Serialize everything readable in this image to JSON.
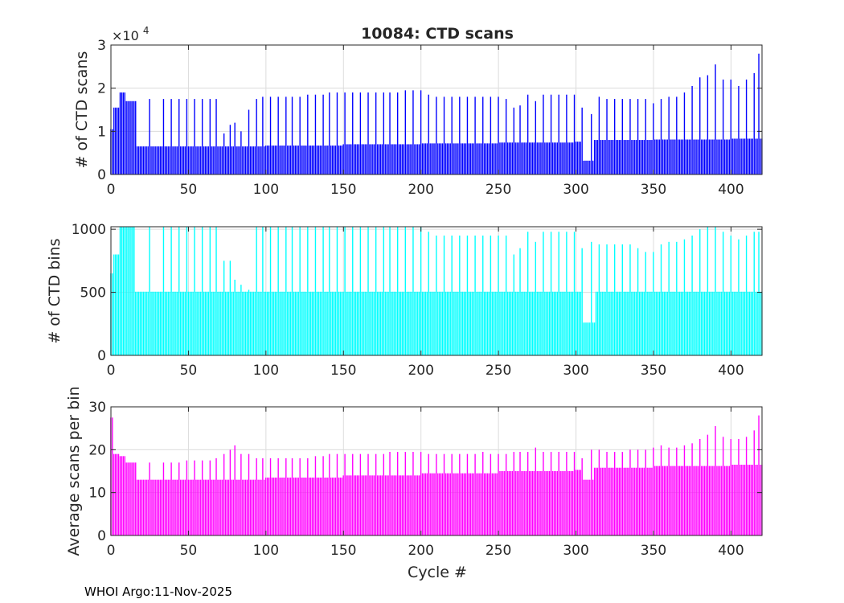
{
  "figure": {
    "title": "10084: CTD scans",
    "xlabel": "Cycle #",
    "footer": "WHOI Argo:11-Nov-2025",
    "top_exponent_base": "×10",
    "top_exponent_power": "4"
  },
  "chart_data": [
    {
      "type": "bar",
      "color": "#0000ff",
      "ylabel": "# of CTD scans",
      "xlim": [
        0,
        420
      ],
      "ylim": [
        0,
        30000
      ],
      "xticks": [
        0,
        50,
        100,
        150,
        200,
        250,
        300,
        350,
        400
      ],
      "yticks": [
        0,
        10000,
        20000,
        30000
      ],
      "ytick_labels": [
        "0",
        "1",
        "2",
        "3"
      ],
      "grid": true,
      "baseline_segments": [
        [
          0,
          2,
          10500
        ],
        [
          2,
          6,
          15500
        ],
        [
          6,
          10,
          19000
        ],
        [
          10,
          14,
          17000
        ],
        [
          14,
          17,
          17000
        ],
        [
          17,
          100,
          6500
        ],
        [
          100,
          150,
          6700
        ],
        [
          150,
          200,
          7000
        ],
        [
          200,
          250,
          7200
        ],
        [
          250,
          300,
          7400
        ],
        [
          300,
          305,
          7600
        ],
        [
          305,
          312,
          3200
        ],
        [
          312,
          350,
          8000
        ],
        [
          350,
          400,
          8100
        ],
        [
          400,
          420,
          8300
        ]
      ],
      "spikes": [
        [
          25,
          17500
        ],
        [
          34,
          17500
        ],
        [
          39,
          17500
        ],
        [
          44,
          17500
        ],
        [
          49,
          17500
        ],
        [
          54,
          17500
        ],
        [
          59,
          17500
        ],
        [
          64,
          17500
        ],
        [
          68,
          17500
        ],
        [
          73,
          9500
        ],
        [
          77,
          11500
        ],
        [
          80,
          12000
        ],
        [
          84,
          10000
        ],
        [
          89,
          15000
        ],
        [
          94,
          17500
        ],
        [
          98,
          18000
        ],
        [
          103,
          18000
        ],
        [
          108,
          18000
        ],
        [
          113,
          18000
        ],
        [
          117,
          18000
        ],
        [
          122,
          18000
        ],
        [
          127,
          18500
        ],
        [
          132,
          18500
        ],
        [
          137,
          18500
        ],
        [
          141,
          19000
        ],
        [
          146,
          19000
        ],
        [
          151,
          19000
        ],
        [
          156,
          19000
        ],
        [
          161,
          19000
        ],
        [
          166,
          19000
        ],
        [
          171,
          19000
        ],
        [
          176,
          19000
        ],
        [
          180,
          19000
        ],
        [
          185,
          19000
        ],
        [
          190,
          19500
        ],
        [
          195,
          19500
        ],
        [
          200,
          19500
        ],
        [
          205,
          18500
        ],
        [
          210,
          18000
        ],
        [
          215,
          18000
        ],
        [
          220,
          18000
        ],
        [
          225,
          18000
        ],
        [
          230,
          18000
        ],
        [
          235,
          18000
        ],
        [
          240,
          18000
        ],
        [
          245,
          18000
        ],
        [
          250,
          18000
        ],
        [
          255,
          17500
        ],
        [
          260,
          15500
        ],
        [
          264,
          16000
        ],
        [
          269,
          18500
        ],
        [
          274,
          17000
        ],
        [
          279,
          18500
        ],
        [
          284,
          18500
        ],
        [
          289,
          18500
        ],
        [
          294,
          18500
        ],
        [
          299,
          18500
        ],
        [
          304,
          15500
        ],
        [
          310,
          14000
        ],
        [
          315,
          18000
        ],
        [
          320,
          17500
        ],
        [
          325,
          17500
        ],
        [
          330,
          17500
        ],
        [
          335,
          17500
        ],
        [
          340,
          17500
        ],
        [
          345,
          17500
        ],
        [
          350,
          16500
        ],
        [
          355,
          17500
        ],
        [
          360,
          18000
        ],
        [
          365,
          18000
        ],
        [
          370,
          19000
        ],
        [
          375,
          20500
        ],
        [
          380,
          22500
        ],
        [
          385,
          23000
        ],
        [
          390,
          25500
        ],
        [
          395,
          22000
        ],
        [
          400,
          22000
        ],
        [
          405,
          20500
        ],
        [
          410,
          22000
        ],
        [
          415,
          23500
        ],
        [
          418,
          28000
        ]
      ]
    },
    {
      "type": "bar",
      "color": "#00ffff",
      "ylabel": "# of CTD bins",
      "xlim": [
        0,
        420
      ],
      "ylim": [
        0,
        1020
      ],
      "xticks": [
        0,
        50,
        100,
        150,
        200,
        250,
        300,
        350,
        400
      ],
      "yticks": [
        0,
        500,
        1000
      ],
      "ytick_labels": [
        "0",
        "500",
        "1000"
      ],
      "grid": true,
      "baseline_segments": [
        [
          0,
          2,
          650
        ],
        [
          2,
          6,
          800
        ],
        [
          6,
          16,
          1020
        ],
        [
          16,
          305,
          505
        ],
        [
          305,
          313,
          260
        ],
        [
          313,
          420,
          505
        ]
      ],
      "spikes": [
        [
          25,
          1020
        ],
        [
          34,
          1020
        ],
        [
          39,
          1020
        ],
        [
          44,
          1020
        ],
        [
          49,
          1020
        ],
        [
          54,
          1020
        ],
        [
          59,
          1020
        ],
        [
          64,
          1020
        ],
        [
          68,
          1020
        ],
        [
          73,
          750
        ],
        [
          77,
          750
        ],
        [
          80,
          600
        ],
        [
          84,
          560
        ],
        [
          89,
          520
        ],
        [
          94,
          1020
        ],
        [
          98,
          1020
        ],
        [
          103,
          1020
        ],
        [
          108,
          1020
        ],
        [
          113,
          1020
        ],
        [
          117,
          1020
        ],
        [
          122,
          1020
        ],
        [
          127,
          1020
        ],
        [
          132,
          1020
        ],
        [
          137,
          1020
        ],
        [
          141,
          1020
        ],
        [
          146,
          1020
        ],
        [
          151,
          1020
        ],
        [
          156,
          1020
        ],
        [
          161,
          1020
        ],
        [
          166,
          1020
        ],
        [
          171,
          1020
        ],
        [
          176,
          1020
        ],
        [
          180,
          1020
        ],
        [
          185,
          1020
        ],
        [
          190,
          1020
        ],
        [
          195,
          1020
        ],
        [
          200,
          1020
        ],
        [
          205,
          980
        ],
        [
          210,
          950
        ],
        [
          215,
          950
        ],
        [
          220,
          950
        ],
        [
          225,
          950
        ],
        [
          230,
          950
        ],
        [
          235,
          950
        ],
        [
          240,
          950
        ],
        [
          245,
          950
        ],
        [
          250,
          950
        ],
        [
          255,
          950
        ],
        [
          260,
          800
        ],
        [
          264,
          850
        ],
        [
          269,
          980
        ],
        [
          274,
          900
        ],
        [
          279,
          980
        ],
        [
          284,
          980
        ],
        [
          289,
          980
        ],
        [
          294,
          980
        ],
        [
          299,
          980
        ],
        [
          304,
          850
        ],
        [
          310,
          900
        ],
        [
          315,
          880
        ],
        [
          320,
          880
        ],
        [
          325,
          880
        ],
        [
          330,
          880
        ],
        [
          335,
          880
        ],
        [
          340,
          850
        ],
        [
          345,
          820
        ],
        [
          350,
          820
        ],
        [
          355,
          880
        ],
        [
          360,
          900
        ],
        [
          365,
          900
        ],
        [
          370,
          920
        ],
        [
          375,
          950
        ],
        [
          380,
          1000
        ],
        [
          385,
          1020
        ],
        [
          390,
          1020
        ],
        [
          395,
          980
        ],
        [
          400,
          950
        ],
        [
          405,
          920
        ],
        [
          410,
          950
        ],
        [
          415,
          980
        ],
        [
          418,
          980
        ]
      ]
    },
    {
      "type": "bar",
      "color": "#ff00ff",
      "ylabel": "Average scans per bin",
      "xlim": [
        0,
        420
      ],
      "ylim": [
        0,
        30
      ],
      "xticks": [
        0,
        50,
        100,
        150,
        200,
        250,
        300,
        350,
        400
      ],
      "yticks": [
        0,
        10,
        20,
        30
      ],
      "ytick_labels": [
        "0",
        "10",
        "20",
        "30"
      ],
      "grid": true,
      "baseline_segments": [
        [
          0,
          2,
          27.5
        ],
        [
          2,
          6,
          19
        ],
        [
          6,
          10,
          18.5
        ],
        [
          10,
          17,
          17
        ],
        [
          17,
          100,
          13
        ],
        [
          100,
          150,
          13.5
        ],
        [
          150,
          200,
          14
        ],
        [
          200,
          250,
          14.5
        ],
        [
          250,
          300,
          15
        ],
        [
          300,
          305,
          15.3
        ],
        [
          305,
          312,
          13
        ],
        [
          312,
          350,
          15.8
        ],
        [
          350,
          400,
          16.2
        ],
        [
          400,
          420,
          16.5
        ]
      ],
      "spikes": [
        [
          25,
          17
        ],
        [
          34,
          17
        ],
        [
          39,
          17
        ],
        [
          44,
          17
        ],
        [
          49,
          17.5
        ],
        [
          54,
          17.5
        ],
        [
          59,
          17.5
        ],
        [
          64,
          17.5
        ],
        [
          68,
          18
        ],
        [
          73,
          19
        ],
        [
          77,
          20
        ],
        [
          80,
          21
        ],
        [
          84,
          19
        ],
        [
          89,
          19
        ],
        [
          94,
          18
        ],
        [
          98,
          18
        ],
        [
          103,
          18
        ],
        [
          108,
          18
        ],
        [
          113,
          18
        ],
        [
          117,
          18
        ],
        [
          122,
          18
        ],
        [
          127,
          18
        ],
        [
          132,
          18.5
        ],
        [
          137,
          18.5
        ],
        [
          141,
          19
        ],
        [
          146,
          19
        ],
        [
          151,
          19
        ],
        [
          156,
          19
        ],
        [
          161,
          19
        ],
        [
          166,
          19
        ],
        [
          171,
          19
        ],
        [
          176,
          19
        ],
        [
          180,
          19.5
        ],
        [
          185,
          19.5
        ],
        [
          190,
          19.5
        ],
        [
          195,
          19.5
        ],
        [
          200,
          19.5
        ],
        [
          205,
          19
        ],
        [
          210,
          19
        ],
        [
          215,
          19
        ],
        [
          220,
          19
        ],
        [
          225,
          19
        ],
        [
          230,
          19
        ],
        [
          235,
          19
        ],
        [
          240,
          19.5
        ],
        [
          245,
          19
        ],
        [
          250,
          19
        ],
        [
          255,
          19
        ],
        [
          260,
          19.5
        ],
        [
          264,
          19.5
        ],
        [
          269,
          19.5
        ],
        [
          274,
          20.5
        ],
        [
          279,
          19.5
        ],
        [
          284,
          19.5
        ],
        [
          289,
          19.5
        ],
        [
          294,
          19.5
        ],
        [
          299,
          19.5
        ],
        [
          304,
          18
        ],
        [
          310,
          20
        ],
        [
          315,
          20
        ],
        [
          320,
          19.5
        ],
        [
          325,
          19.5
        ],
        [
          330,
          19.5
        ],
        [
          335,
          20
        ],
        [
          340,
          20
        ],
        [
          345,
          20
        ],
        [
          350,
          20.5
        ],
        [
          355,
          21
        ],
        [
          360,
          20.5
        ],
        [
          365,
          20.5
        ],
        [
          370,
          21
        ],
        [
          375,
          21.5
        ],
        [
          380,
          22.5
        ],
        [
          385,
          23.5
        ],
        [
          390,
          25.5
        ],
        [
          395,
          23
        ],
        [
          400,
          22.5
        ],
        [
          405,
          22.5
        ],
        [
          410,
          23
        ],
        [
          415,
          24.5
        ],
        [
          418,
          28
        ]
      ]
    }
  ]
}
